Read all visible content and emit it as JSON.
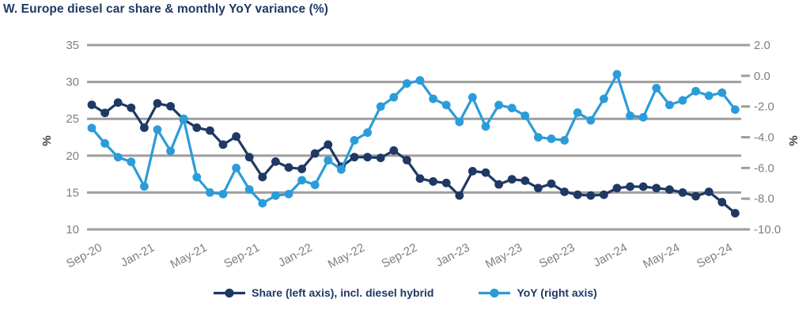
{
  "title": "W. Europe diesel car share & monthly YoY variance (%)",
  "colors": {
    "share_series": "#1F3864",
    "yoy_series": "#2B9CD9",
    "grid": "#9E9E9E",
    "axis_text": "#7F7F7F",
    "axis_unit_text": "#404040",
    "title_text": "#1F3864"
  },
  "chart_data": {
    "type": "line",
    "title": "W. Europe diesel car share & monthly YoY variance (%)",
    "grid": "horizontal",
    "legend_position": "bottom",
    "x_tick_interval": 4,
    "categories": [
      "Sep-20",
      "Oct-20",
      "Nov-20",
      "Dec-20",
      "Jan-21",
      "Feb-21",
      "Mar-21",
      "Apr-21",
      "May-21",
      "Jun-21",
      "Jul-21",
      "Aug-21",
      "Sep-21",
      "Oct-21",
      "Nov-21",
      "Dec-21",
      "Jan-22",
      "Feb-22",
      "Mar-22",
      "Apr-22",
      "May-22",
      "Jun-22",
      "Jul-22",
      "Aug-22",
      "Sep-22",
      "Oct-22",
      "Nov-22",
      "Dec-22",
      "Jan-23",
      "Feb-23",
      "Mar-23",
      "Apr-23",
      "May-23",
      "Jun-23",
      "Jul-23",
      "Aug-23",
      "Sep-23",
      "Oct-23",
      "Nov-23",
      "Dec-23",
      "Jan-24",
      "Feb-24",
      "Mar-24",
      "Apr-24",
      "May-24",
      "Jun-24",
      "Jul-24",
      "Aug-24",
      "Sep-24",
      "Oct-24"
    ],
    "x_tick_labels": [
      "Sep-20",
      "Jan-21",
      "May-21",
      "Sep-21",
      "Jan-22",
      "May-22",
      "Sep-22",
      "Jan-23",
      "May-23",
      "Sep-23",
      "Jan-24",
      "May-24",
      "Sep-24"
    ],
    "axes": {
      "left": {
        "label": "%",
        "min": 10,
        "max": 35,
        "ticks": [
          "35",
          "30",
          "25",
          "20",
          "15",
          "10"
        ]
      },
      "right": {
        "label": "%",
        "min": -10,
        "max": 2,
        "ticks": [
          "2.0",
          "0.0",
          "-2.0",
          "-4.0",
          "-6.0",
          "-8.0",
          "-10.0"
        ]
      }
    },
    "series": [
      {
        "name": "Share (left axis), incl. diesel hybrid",
        "axis": "left",
        "color": "#1F3864",
        "values": [
          26.9,
          25.8,
          27.2,
          26.5,
          23.8,
          27.1,
          26.7,
          24.9,
          23.8,
          23.4,
          21.5,
          22.6,
          19.8,
          17.1,
          19.2,
          18.4,
          18.2,
          20.3,
          21.5,
          18.5,
          19.8,
          19.8,
          19.7,
          20.7,
          19.4,
          16.9,
          16.5,
          16.3,
          14.6,
          17.9,
          17.7,
          16.1,
          16.8,
          16.6,
          15.6,
          16.2,
          15.1,
          14.7,
          14.6,
          14.7,
          15.6,
          15.8,
          15.8,
          15.6,
          15.4,
          15.0,
          14.5,
          15.1,
          13.7,
          12.2
        ]
      },
      {
        "name": "YoY (right axis)",
        "axis": "right",
        "color": "#2B9CD9",
        "values": [
          -3.4,
          -4.4,
          -5.3,
          -5.6,
          -7.2,
          -3.5,
          -4.9,
          -2.8,
          -6.6,
          -7.6,
          -7.7,
          -6.0,
          -7.4,
          -8.3,
          -7.8,
          -7.7,
          -6.8,
          -7.1,
          -5.5,
          -6.1,
          -4.2,
          -3.7,
          -2.0,
          -1.4,
          -0.5,
          -0.3,
          -1.5,
          -1.9,
          -3.0,
          -1.4,
          -3.3,
          -1.9,
          -2.1,
          -2.6,
          -4.0,
          -4.1,
          -4.2,
          -2.4,
          -2.9,
          -1.5,
          0.1,
          -2.6,
          -2.7,
          -0.8,
          -1.9,
          -1.6,
          -1.0,
          -1.3,
          -1.1,
          -2.2
        ]
      }
    ]
  }
}
